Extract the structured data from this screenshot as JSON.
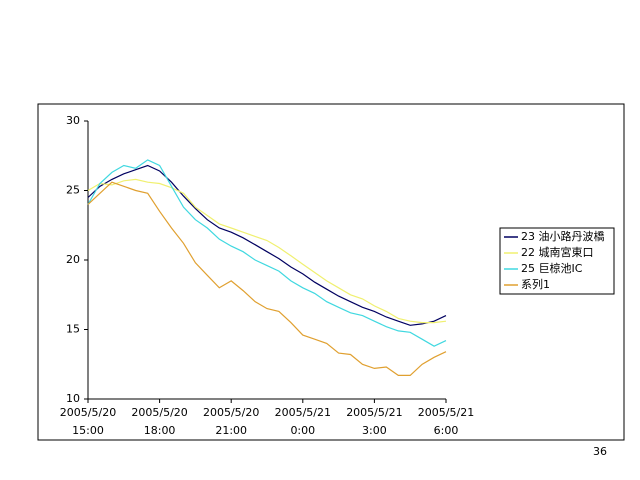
{
  "chart_data": {
    "type": "line",
    "x": [
      15,
      15.5,
      16,
      16.5,
      17,
      17.5,
      18,
      18.5,
      19,
      19.5,
      20,
      20.5,
      21,
      21.5,
      22,
      22.5,
      23,
      23.5,
      24,
      24.5,
      25,
      25.5,
      26,
      26.5,
      27,
      27.5,
      28,
      28.5,
      29,
      29.5,
      30
    ],
    "xlim": [
      15,
      30
    ],
    "xticks": [
      {
        "value": 15,
        "label": "2005/5/20 15:00"
      },
      {
        "value": 18,
        "label": "2005/5/20 18:00"
      },
      {
        "value": 21,
        "label": "2005/5/20 21:00"
      },
      {
        "value": 24,
        "label": "2005/5/21 0:00"
      },
      {
        "value": 27,
        "label": "2005/5/21 3:00"
      },
      {
        "value": 30,
        "label": "2005/5/21 6:00"
      }
    ],
    "ylim": [
      10,
      30
    ],
    "yticks": [
      10,
      15,
      20,
      25,
      30
    ],
    "legend": "right",
    "series": [
      {
        "name": "23 油小路丹波橋",
        "color": "#000060",
        "values": [
          24.5,
          25.3,
          25.8,
          26.2,
          26.5,
          26.8,
          26.4,
          25.6,
          24.6,
          23.7,
          22.9,
          22.3,
          22.0,
          21.6,
          21.1,
          20.6,
          20.1,
          19.5,
          19.0,
          18.4,
          17.9,
          17.4,
          17.0,
          16.6,
          16.3,
          15.9,
          15.6,
          15.3,
          15.4,
          15.6,
          16.0
        ]
      },
      {
        "name": "22 城南宮東口",
        "color": "#f0f070",
        "values": [
          25.0,
          25.5,
          25.4,
          25.7,
          25.8,
          25.6,
          25.5,
          25.2,
          24.8,
          23.8,
          23.2,
          22.6,
          22.3,
          22.0,
          21.7,
          21.4,
          20.9,
          20.3,
          19.7,
          19.1,
          18.5,
          18.0,
          17.5,
          17.2,
          16.7,
          16.3,
          15.8,
          15.6,
          15.5,
          15.5,
          15.6
        ]
      },
      {
        "name": "25 巨椋池IC",
        "color": "#40d8e0",
        "values": [
          24.0,
          25.5,
          26.3,
          26.8,
          26.6,
          27.2,
          26.8,
          25.3,
          23.8,
          22.9,
          22.3,
          21.5,
          21.0,
          20.6,
          20.0,
          19.6,
          19.2,
          18.5,
          18.0,
          17.6,
          17.0,
          16.6,
          16.2,
          16.0,
          15.6,
          15.2,
          14.9,
          14.8,
          14.3,
          13.8,
          14.2
        ]
      },
      {
        "name": "系列1",
        "color": "#e0a030",
        "values": [
          24.0,
          24.8,
          25.6,
          25.3,
          25.0,
          24.8,
          23.5,
          22.3,
          21.2,
          19.8,
          18.9,
          18.0,
          18.5,
          17.8,
          17.0,
          16.5,
          16.3,
          15.5,
          14.6,
          14.3,
          14.0,
          13.3,
          13.2,
          12.5,
          12.2,
          12.3,
          11.7,
          11.7,
          12.5,
          13.0,
          13.4
        ]
      }
    ]
  },
  "page_number": "36"
}
